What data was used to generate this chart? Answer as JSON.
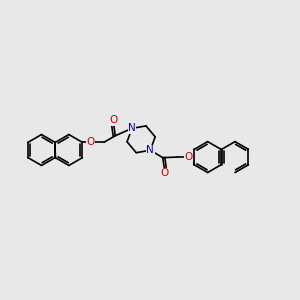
{
  "background_color": "#e8e8e8",
  "bond_color": "#000000",
  "N_color": "#0000cc",
  "O_color": "#cc0000",
  "bond_width": 1.2,
  "figsize": [
    3.0,
    3.0
  ],
  "dpi": 100,
  "xlim": [
    0,
    10
  ],
  "ylim": [
    2,
    8
  ]
}
